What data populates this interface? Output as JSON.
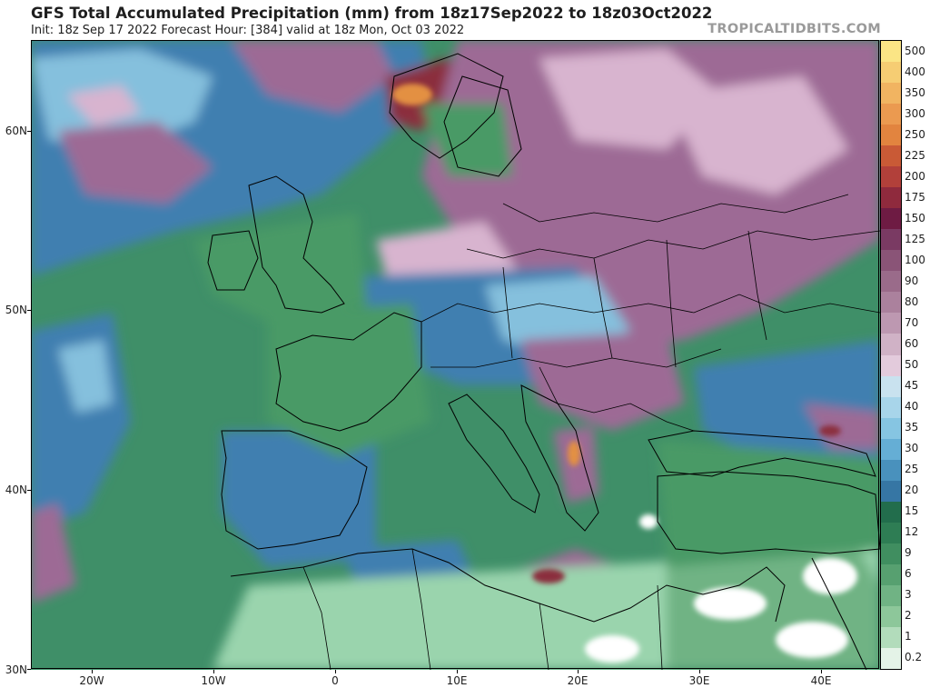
{
  "header": {
    "title": "GFS Total Accumulated Precipitation (mm) from 18z17Sep2022 to 18z03Oct2022",
    "subtitle": "Init: 18z Sep 17 2022   Forecast Hour: [384]   valid at 18z Mon, Oct 03 2022",
    "brand": "TROPICALTIDBITS.COM"
  },
  "axes": {
    "lat_labels": [
      "60N",
      "50N",
      "40N",
      "30N"
    ],
    "lon_labels": [
      "20W",
      "10W",
      "0",
      "10E",
      "20E",
      "30E",
      "40E"
    ]
  },
  "colorbar": {
    "labels": [
      "500",
      "400",
      "350",
      "300",
      "250",
      "225",
      "200",
      "175",
      "150",
      "125",
      "100",
      "90",
      "80",
      "70",
      "60",
      "50",
      "45",
      "40",
      "35",
      "30",
      "25",
      "20",
      "15",
      "12",
      "9",
      "6",
      "3",
      "2",
      "1",
      "0.2"
    ],
    "colors": [
      "#fbe585",
      "#f6cd73",
      "#f1b461",
      "#eb9a50",
      "#e2843f",
      "#c95a36",
      "#b2403a",
      "#8f2a3d",
      "#6e1b43",
      "#7a3a63",
      "#8a5477",
      "#9a6b8a",
      "#ab819d",
      "#bd98b1",
      "#d0b2c6",
      "#e3cbdc",
      "#c9e2ef",
      "#a8d5ea",
      "#86c5e2",
      "#65aed5",
      "#4991bd",
      "#3676a4",
      "#226d4c",
      "#2e7d54",
      "#408e60",
      "#57a070",
      "#70b384",
      "#8dc79a",
      "#b2dcbb",
      "#e4f3e7"
    ]
  },
  "map": {
    "description_colors": {
      "ocean_low": "#3f8f68",
      "land_low": "#4a9a66",
      "light_green": "#9ad4ad",
      "blue": "#3f7fb0",
      "light_blue": "#85c0dd",
      "purple": "#9d6b95",
      "pink": "#d8b4cf",
      "dark_red": "#8b2f3d",
      "orange": "#e39043",
      "white": "#ffffff",
      "border": "#000000"
    }
  }
}
